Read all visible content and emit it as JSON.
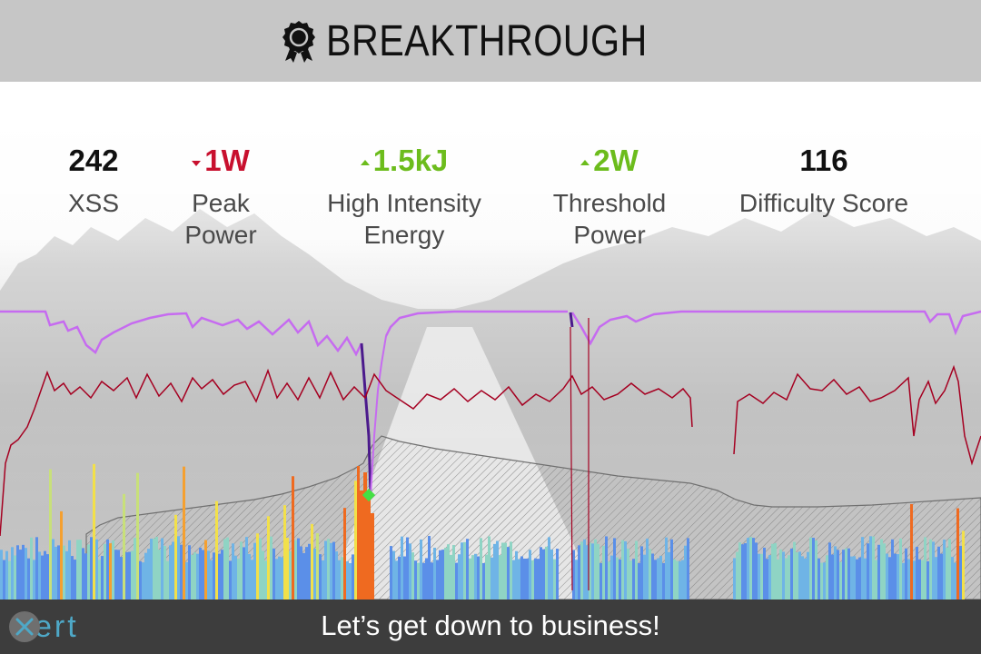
{
  "header": {
    "title": "BREAKTHROUGH",
    "icon": "award-badge-icon",
    "background": "#c6c6c6"
  },
  "stats": [
    {
      "value": "242",
      "label": "XSS",
      "trend": "none",
      "color": "#111111"
    },
    {
      "value": "1W",
      "label": "Peak Power",
      "trend": "down",
      "color": "#c8102e"
    },
    {
      "value": "1.5kJ",
      "label": "High Intensity Energy",
      "trend": "up",
      "color": "#6cbc1c"
    },
    {
      "value": "2W",
      "label": "Threshold Power",
      "trend": "up",
      "color": "#6cbc1c"
    },
    {
      "value": "116",
      "label": "Difficulty Score",
      "trend": "none",
      "color": "#111111"
    }
  ],
  "chart": {
    "series_colors": {
      "mpa": "#c66bf0",
      "mpa_breakthrough": "#4b1a8c",
      "heart_rate": "#a50021",
      "elevation_fill": "#b0b0b0",
      "breakthrough_marker": "#44e044"
    },
    "power_palette": [
      "#5b8fe8",
      "#6fb4e6",
      "#8fd4c4",
      "#c8e07a",
      "#f2e04a",
      "#f5a030",
      "#ef6a20"
    ]
  },
  "footer": {
    "logo_text": "ert",
    "logo_icon": "xert-logo-icon",
    "tagline": "Let’s get down to business!",
    "background": "#3d3d3d"
  }
}
